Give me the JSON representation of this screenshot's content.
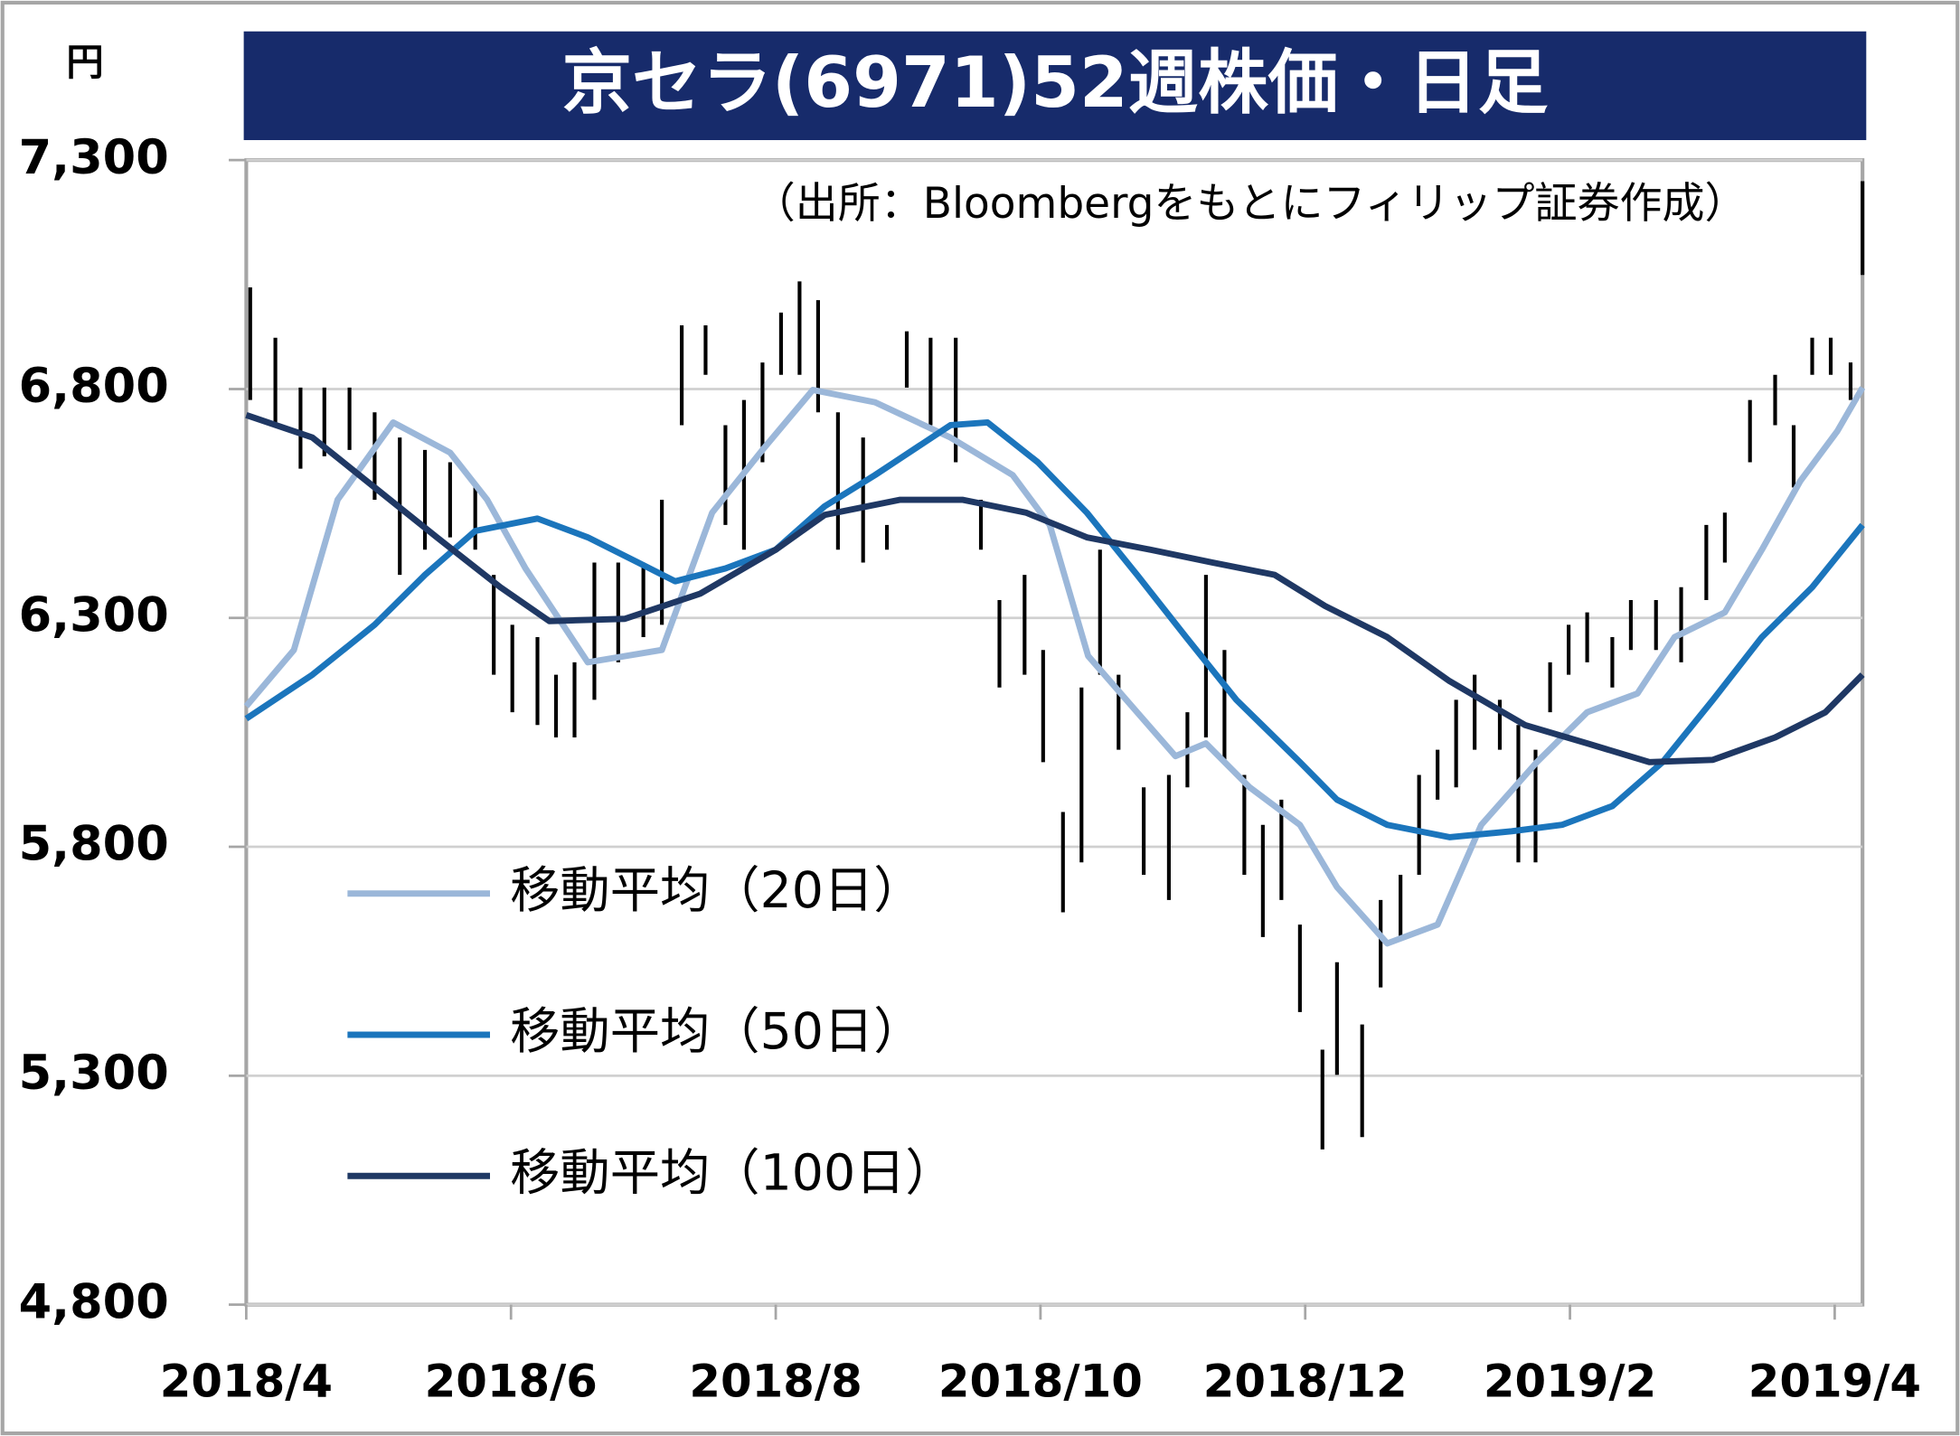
{
  "chart_data": {
    "type": "line",
    "title": "京セラ(6971)52週株価・日足",
    "y_unit": "円",
    "note": "（出所：Bloombergをもとにフィリップ証券作成）",
    "xlim": [
      0,
      12.21
    ],
    "xticks": [
      {
        "value": 0,
        "label": "2018/4"
      },
      {
        "value": 2,
        "label": "2018/6"
      },
      {
        "value": 4,
        "label": "2018/8"
      },
      {
        "value": 6,
        "label": "2018/10"
      },
      {
        "value": 8,
        "label": "2018/12"
      },
      {
        "value": 10,
        "label": "2019/2"
      },
      {
        "value": 12,
        "label": "2019/4"
      }
    ],
    "ylim": [
      4800,
      7300
    ],
    "yticks": [
      {
        "value": 4800,
        "label": "4,800"
      },
      {
        "value": 5300,
        "label": "5,300"
      },
      {
        "value": 5800,
        "label": "5,800"
      },
      {
        "value": 6300,
        "label": "6,300"
      },
      {
        "value": 6800,
        "label": "6,800"
      },
      {
        "value": 7300,
        "label": "7,300"
      }
    ],
    "grid": true,
    "bars": {
      "color": "#000000",
      "x": [
        0.03,
        0.22,
        0.41,
        0.59,
        0.78,
        0.97,
        1.16,
        1.35,
        1.54,
        1.73,
        1.87,
        2.01,
        2.2,
        2.34,
        2.48,
        2.63,
        2.81,
        3.0,
        3.14,
        3.29,
        3.47,
        3.62,
        3.76,
        3.9,
        4.04,
        4.18,
        4.32,
        4.47,
        4.66,
        4.84,
        4.99,
        5.17,
        5.36,
        5.55,
        5.69,
        5.88,
        6.02,
        6.17,
        6.31,
        6.45,
        6.59,
        6.78,
        6.97,
        7.11,
        7.25,
        7.39,
        7.54,
        7.68,
        7.82,
        7.96,
        8.13,
        8.24,
        8.43,
        8.57,
        8.72,
        8.86,
        9.0,
        9.14,
        9.28,
        9.47,
        9.61,
        9.74,
        9.85,
        9.99,
        10.13,
        10.32,
        10.46,
        10.65,
        10.84,
        11.03,
        11.17,
        11.36,
        11.55,
        11.69,
        11.83,
        11.97,
        12.12,
        12.21
      ],
      "high": [
        7022,
        6912,
        6803,
        6803,
        6803,
        6749,
        6694,
        6667,
        6640,
        6585,
        6394,
        6285,
        6258,
        6176,
        6203,
        6421,
        6421,
        6421,
        6558,
        6939,
        6939,
        6721,
        6776,
        6858,
        6967,
        7035,
        6994,
        6749,
        6694,
        6503,
        6926,
        6912,
        6912,
        6558,
        6339,
        6394,
        6230,
        5876,
        6148,
        6449,
        6176,
        5930,
        5957,
        6094,
        6394,
        6230,
        5957,
        5848,
        5903,
        5630,
        5357,
        5548,
        5412,
        5684,
        5739,
        5957,
        6012,
        6121,
        6176,
        6121,
        6066,
        6012,
        6203,
        6285,
        6312,
        6258,
        6339,
        6339,
        6367,
        6503,
        6530,
        6776,
        6831,
        6721,
        6912,
        6912,
        6858,
        7254
      ],
      "low": [
        6776,
        6721,
        6626,
        6653,
        6667,
        6558,
        6394,
        6449,
        6476,
        6449,
        6176,
        6094,
        6066,
        6039,
        6039,
        6121,
        6203,
        6258,
        6285,
        6721,
        6831,
        6503,
        6449,
        6640,
        6831,
        6831,
        6749,
        6449,
        6421,
        6449,
        6803,
        6721,
        6640,
        6449,
        6148,
        6176,
        5985,
        5657,
        5766,
        6176,
        6012,
        5739,
        5684,
        5930,
        6039,
        5985,
        5739,
        5603,
        5684,
        5439,
        5139,
        5302,
        5166,
        5493,
        5603,
        5739,
        5903,
        5930,
        6012,
        6012,
        5766,
        5766,
        6094,
        6176,
        6203,
        6148,
        6230,
        6230,
        6203,
        6339,
        6421,
        6640,
        6721,
        6585,
        6831,
        6831,
        6776,
        7049
      ]
    },
    "series": [
      {
        "name": "移動平均（20日）",
        "color": "#9bb7d9",
        "x": [
          0,
          0.36,
          0.69,
          1.11,
          1.54,
          1.82,
          2.11,
          2.58,
          3.14,
          3.52,
          3.9,
          4.28,
          4.75,
          5.32,
          5.79,
          6.07,
          6.36,
          6.73,
          7.02,
          7.25,
          7.58,
          7.96,
          8.24,
          8.62,
          9.0,
          9.33,
          9.75,
          10.13,
          10.51,
          10.79,
          11.17,
          11.45,
          11.74,
          12.02,
          12.21
        ],
        "values": [
          6107,
          6230,
          6558,
          6727,
          6661,
          6558,
          6408,
          6203,
          6230,
          6530,
          6667,
          6798,
          6771,
          6694,
          6612,
          6503,
          6217,
          6094,
          5998,
          6026,
          5930,
          5848,
          5712,
          5589,
          5630,
          5848,
          5985,
          6094,
          6135,
          6258,
          6312,
          6449,
          6599,
          6708,
          6803
        ]
      },
      {
        "name": "移動平均（50日）",
        "color": "#1b75bc",
        "x": [
          0,
          0.5,
          0.97,
          1.35,
          1.73,
          2.2,
          2.58,
          2.96,
          3.24,
          3.62,
          4.0,
          4.37,
          4.75,
          5.32,
          5.6,
          5.98,
          6.35,
          6.73,
          7.1,
          7.48,
          7.96,
          8.24,
          8.62,
          9.09,
          9.56,
          9.94,
          10.32,
          10.7,
          11.08,
          11.45,
          11.83,
          12.21
        ],
        "values": [
          6080,
          6176,
          6285,
          6394,
          6490,
          6517,
          6476,
          6421,
          6380,
          6408,
          6449,
          6544,
          6612,
          6721,
          6727,
          6640,
          6530,
          6394,
          6258,
          6121,
          5985,
          5903,
          5848,
          5821,
          5834,
          5848,
          5889,
          5985,
          6121,
          6258,
          6367,
          6503
        ]
      },
      {
        "name": "移動平均（100日）",
        "color": "#1f3864",
        "x": [
          0,
          0.5,
          0.97,
          1.44,
          1.92,
          2.29,
          2.86,
          3.43,
          4.0,
          4.37,
          4.94,
          5.41,
          5.89,
          6.35,
          6.83,
          7.3,
          7.77,
          8.15,
          8.62,
          9.09,
          9.66,
          10.13,
          10.6,
          11.08,
          11.55,
          11.93,
          12.21
        ],
        "values": [
          6743,
          6694,
          6585,
          6476,
          6367,
          6293,
          6298,
          6353,
          6449,
          6525,
          6558,
          6558,
          6530,
          6476,
          6449,
          6421,
          6394,
          6326,
          6258,
          6162,
          6066,
          6026,
          5985,
          5990,
          6039,
          6094,
          6176
        ]
      }
    ]
  }
}
